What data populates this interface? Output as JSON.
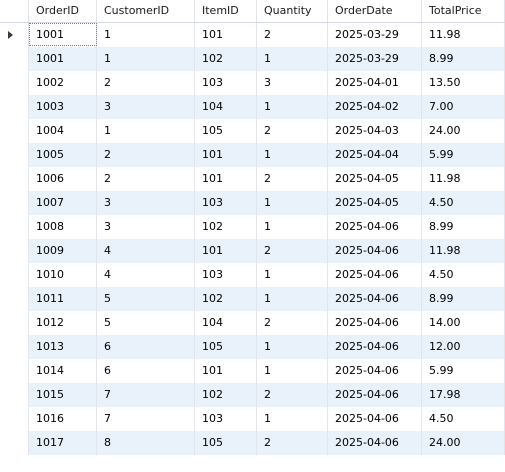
{
  "columns": [
    "OrderID",
    "CustomerID",
    "ItemID",
    "Quantity",
    "OrderDate",
    "TotalPrice"
  ],
  "rows": [
    [
      "1001",
      "1",
      "101",
      "2",
      "2025-03-29",
      "11.98"
    ],
    [
      "1001",
      "1",
      "102",
      "1",
      "2025-03-29",
      "8.99"
    ],
    [
      "1002",
      "2",
      "103",
      "3",
      "2025-04-01",
      "13.50"
    ],
    [
      "1003",
      "3",
      "104",
      "1",
      "2025-04-02",
      "7.00"
    ],
    [
      "1004",
      "1",
      "105",
      "2",
      "2025-04-03",
      "24.00"
    ],
    [
      "1005",
      "2",
      "101",
      "1",
      "2025-04-04",
      "5.99"
    ],
    [
      "1006",
      "2",
      "101",
      "2",
      "2025-04-05",
      "11.98"
    ],
    [
      "1007",
      "3",
      "103",
      "1",
      "2025-04-05",
      "4.50"
    ],
    [
      "1008",
      "3",
      "102",
      "1",
      "2025-04-06",
      "8.99"
    ],
    [
      "1009",
      "4",
      "101",
      "2",
      "2025-04-06",
      "11.98"
    ],
    [
      "1010",
      "4",
      "103",
      "1",
      "2025-04-06",
      "4.50"
    ],
    [
      "1011",
      "5",
      "102",
      "1",
      "2025-04-06",
      "8.99"
    ],
    [
      "1012",
      "5",
      "104",
      "2",
      "2025-04-06",
      "14.00"
    ],
    [
      "1013",
      "6",
      "105",
      "1",
      "2025-04-06",
      "12.00"
    ],
    [
      "1014",
      "6",
      "101",
      "1",
      "2025-04-06",
      "5.99"
    ],
    [
      "1015",
      "7",
      "102",
      "2",
      "2025-04-06",
      "17.98"
    ],
    [
      "1016",
      "7",
      "103",
      "1",
      "2025-04-06",
      "4.50"
    ],
    [
      "1017",
      "8",
      "105",
      "2",
      "2025-04-06",
      "24.00"
    ]
  ],
  "current_row_marker_icon": "current-row-arrow-icon",
  "colors": {
    "row_alt": "#e9f1fb",
    "row": "#ffffff",
    "grid_line": "#e2e6ec"
  }
}
